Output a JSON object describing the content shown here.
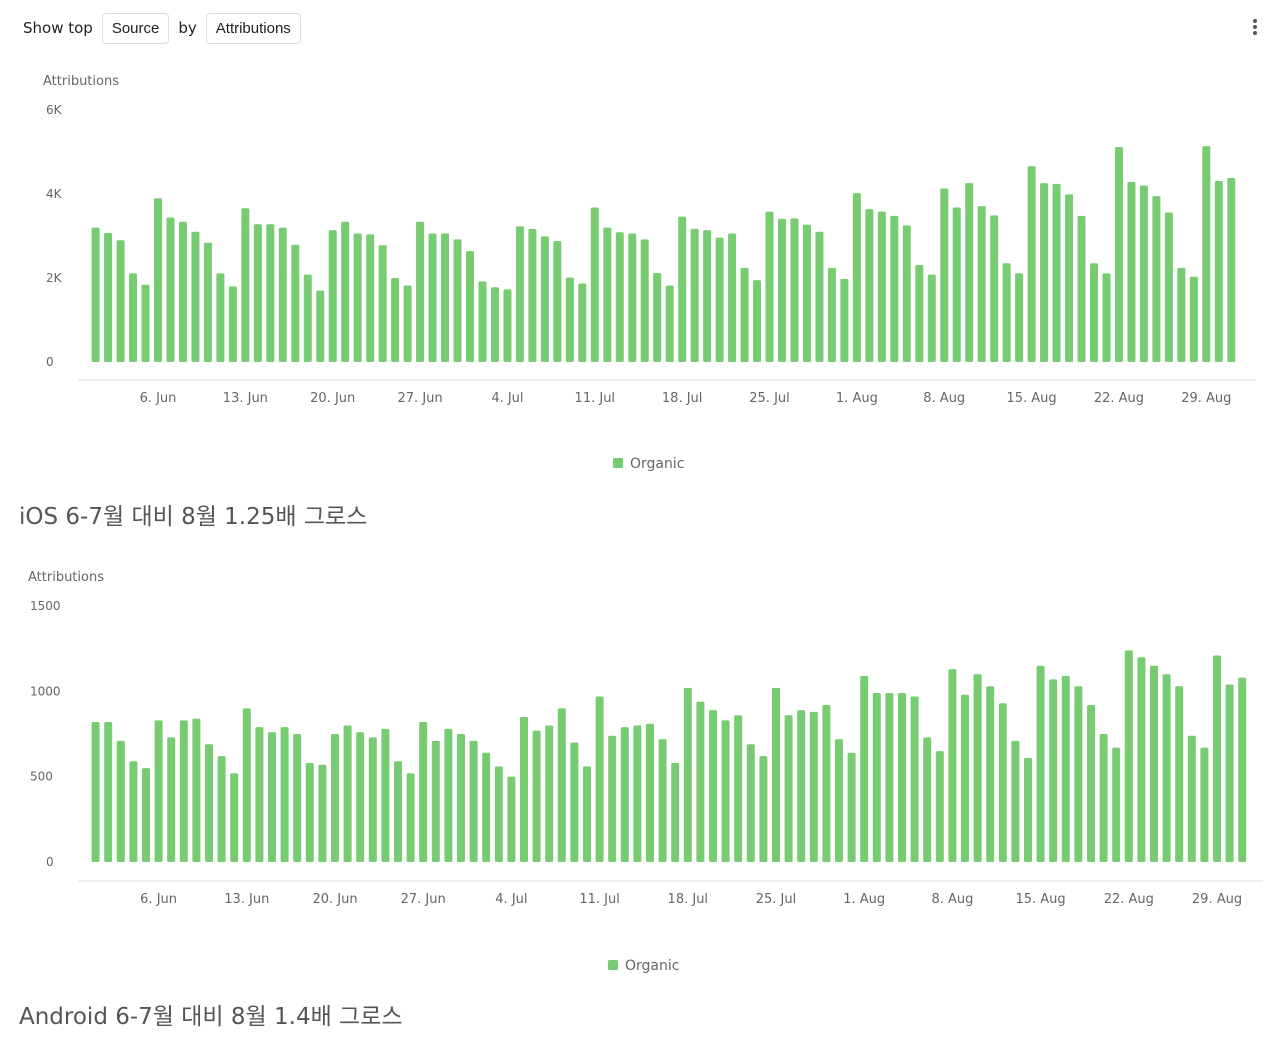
{
  "toolbar": {
    "show_top_label": "Show top",
    "source_button": "Source",
    "by_label": "by",
    "attributions_button": "Attributions",
    "more_icon": "kebab-vertical-icon"
  },
  "colors": {
    "bar": "#77cc72",
    "axis": "#dddddd",
    "tick_text": "#666666"
  },
  "captions": {
    "ios": "iOS 6-7월 대비 8월 1.25배 그로스",
    "android": "Android 6-7월 대비 8월 1.4배 그로스"
  },
  "chart_data": [
    {
      "type": "bar",
      "title": "",
      "ylabel": "Attributions",
      "ylim": [
        0,
        6000
      ],
      "yticks": [
        0,
        2000,
        4000,
        6000
      ],
      "ytick_labels": [
        "0",
        "2K",
        "4K",
        "6K"
      ],
      "start_date": "2023-06-01",
      "xtick_labels": [
        "6. Jun",
        "13. Jun",
        "20. Jun",
        "27. Jun",
        "4. Jul",
        "11. Jul",
        "18. Jul",
        "25. Jul",
        "1. Aug",
        "8. Aug",
        "15. Aug",
        "22. Aug",
        "29. Aug"
      ],
      "legend": "bottom-center",
      "series": [
        {
          "name": "Organic",
          "color": "#77cc72",
          "values": [
            3200,
            3070,
            2900,
            2110,
            1840,
            3900,
            3440,
            3340,
            3100,
            2840,
            2110,
            1800,
            3660,
            3280,
            3280,
            3200,
            2790,
            2080,
            1700,
            3140,
            3340,
            3060,
            3040,
            2780,
            2000,
            1820,
            3340,
            3060,
            3060,
            2920,
            2640,
            1920,
            1780,
            1730,
            3230,
            3170,
            2990,
            2880,
            2010,
            1870,
            3680,
            3200,
            3090,
            3060,
            2920,
            2120,
            1820,
            3460,
            3170,
            3140,
            2960,
            3060,
            2240,
            1950,
            3580,
            3410,
            3420,
            3270,
            3100,
            2240,
            1980,
            4020,
            3640,
            3580,
            3480,
            3250,
            2310,
            2080,
            4130,
            3680,
            4260,
            3710,
            3490,
            2350,
            2110,
            4660,
            4260,
            4240,
            3990,
            3480,
            2350,
            2110,
            5120,
            4290,
            4200,
            3950,
            3560,
            2240,
            2030,
            5140,
            4310,
            4380
          ]
        }
      ]
    },
    {
      "type": "bar",
      "title": "",
      "ylabel": "Attributions",
      "ylim": [
        0,
        1500
      ],
      "yticks": [
        0,
        500,
        1000,
        1500
      ],
      "ytick_labels": [
        "0",
        "500",
        "1000",
        "1500"
      ],
      "start_date": "2023-06-01",
      "xtick_labels": [
        "6. Jun",
        "13. Jun",
        "20. Jun",
        "27. Jun",
        "4. Jul",
        "11. Jul",
        "18. Jul",
        "25. Jul",
        "1. Aug",
        "8. Aug",
        "15. Aug",
        "22. Aug",
        "29. Aug"
      ],
      "legend": "bottom-center",
      "series": [
        {
          "name": "Organic",
          "color": "#77cc72",
          "values": [
            820,
            820,
            710,
            590,
            550,
            830,
            730,
            830,
            840,
            690,
            620,
            520,
            900,
            790,
            760,
            790,
            750,
            580,
            570,
            750,
            800,
            760,
            730,
            780,
            590,
            520,
            820,
            710,
            780,
            750,
            710,
            640,
            560,
            500,
            850,
            770,
            800,
            900,
            700,
            560,
            970,
            740,
            790,
            800,
            810,
            720,
            580,
            1020,
            940,
            890,
            830,
            860,
            690,
            620,
            1020,
            860,
            890,
            880,
            920,
            720,
            640,
            1090,
            990,
            990,
            990,
            970,
            730,
            650,
            1130,
            980,
            1100,
            1030,
            930,
            710,
            610,
            1150,
            1070,
            1090,
            1030,
            920,
            750,
            670,
            1240,
            1200,
            1150,
            1100,
            1030,
            740,
            670,
            1210,
            1040,
            1080
          ]
        }
      ]
    }
  ]
}
